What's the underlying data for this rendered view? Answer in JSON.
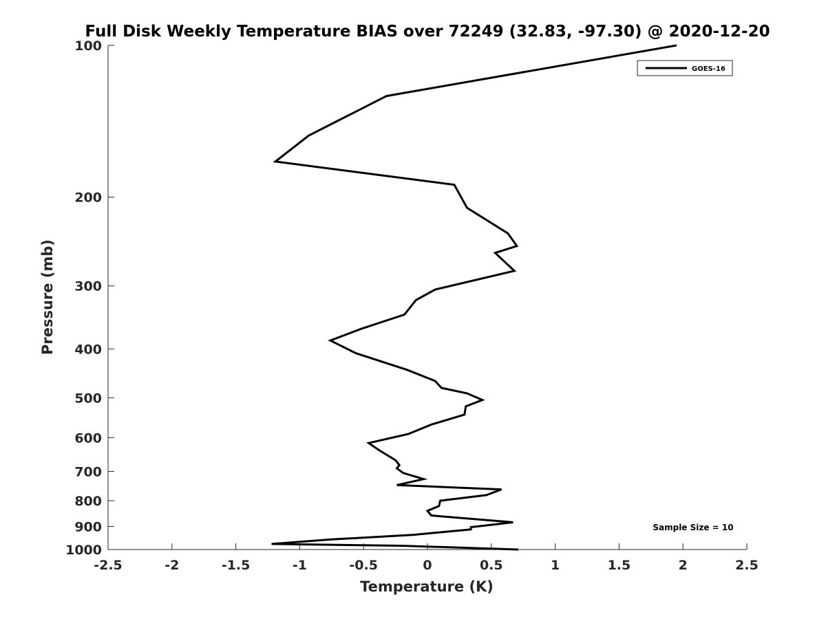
{
  "chart_data": {
    "type": "line",
    "title": "Full Disk Weekly Temperature BIAS over 72249 (32.83, -97.30) @ 2020-12-20",
    "xlabel": "Temperature (K)",
    "ylabel": "Pressure (mb)",
    "xlim": [
      -2.5,
      2.5
    ],
    "ylim": [
      100,
      1000
    ],
    "y_scale": "log",
    "y_reversed": true,
    "x_ticks": [
      -2.5,
      -2,
      -1.5,
      -1,
      -0.5,
      0,
      0.5,
      1,
      1.5,
      2,
      2.5
    ],
    "x_tick_labels": [
      "-2.5",
      "-2",
      "-1.5",
      "-1",
      "-0.5",
      "0",
      "0.5",
      "1",
      "1.5",
      "2",
      "2.5"
    ],
    "y_ticks": [
      100,
      200,
      300,
      400,
      500,
      600,
      700,
      800,
      900,
      1000
    ],
    "y_tick_labels": [
      "100",
      "200",
      "300",
      "400",
      "500",
      "600",
      "700",
      "800",
      "900",
      "1000"
    ],
    "grid": false,
    "legend_position": "top-right",
    "series": [
      {
        "name": "GOES-16",
        "color": "#000000",
        "points": [
          [
            1.95,
            100
          ],
          [
            -0.32,
            126
          ],
          [
            -0.93,
            151
          ],
          [
            -1.19,
            170
          ],
          [
            0.21,
            189
          ],
          [
            0.31,
            210
          ],
          [
            0.63,
            236
          ],
          [
            0.7,
            250
          ],
          [
            0.53,
            258
          ],
          [
            0.68,
            280
          ],
          [
            0.06,
            305
          ],
          [
            -0.09,
            320
          ],
          [
            -0.18,
            342
          ],
          [
            -0.52,
            365
          ],
          [
            -0.76,
            385
          ],
          [
            -0.56,
            408
          ],
          [
            -0.16,
            440
          ],
          [
            0.06,
            463
          ],
          [
            0.11,
            478
          ],
          [
            0.31,
            490
          ],
          [
            0.43,
            505
          ],
          [
            0.3,
            520
          ],
          [
            0.29,
            540
          ],
          [
            0.03,
            565
          ],
          [
            -0.15,
            590
          ],
          [
            -0.46,
            615
          ],
          [
            -0.38,
            635
          ],
          [
            -0.25,
            665
          ],
          [
            -0.22,
            680
          ],
          [
            -0.24,
            690
          ],
          [
            -0.19,
            705
          ],
          [
            -0.03,
            725
          ],
          [
            -0.24,
            745
          ],
          [
            0.58,
            760
          ],
          [
            0.46,
            780
          ],
          [
            0.1,
            800
          ],
          [
            0.09,
            820
          ],
          [
            0.0,
            838
          ],
          [
            0.03,
            856
          ],
          [
            0.67,
            883
          ],
          [
            0.34,
            903
          ],
          [
            0.34,
            912
          ],
          [
            -0.11,
            935
          ],
          [
            -0.75,
            955
          ],
          [
            -1.22,
            975
          ],
          [
            -0.2,
            983
          ],
          [
            0.71,
            1000
          ]
        ]
      }
    ],
    "annotation": "Sample Size = 10"
  }
}
